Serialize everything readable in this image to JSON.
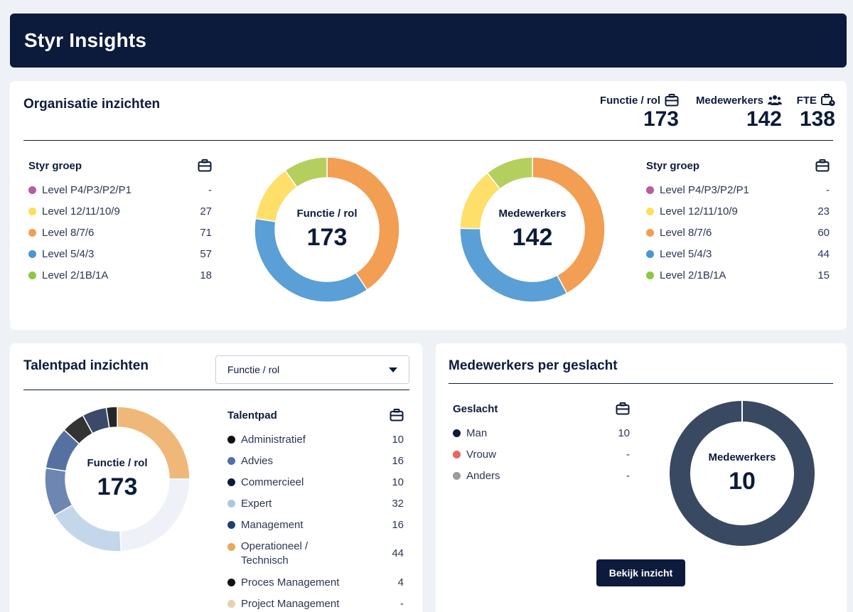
{
  "header": {
    "title": "Styr Insights"
  },
  "org": {
    "title": "Organisatie inzichten",
    "kpis": [
      {
        "label": "Functie / rol",
        "value": "173",
        "icon": "briefcase-icon"
      },
      {
        "label": "Medewerkers",
        "value": "142",
        "icon": "people-icon"
      },
      {
        "label": "FTE",
        "value": "138",
        "icon": "briefcase-clock-icon"
      }
    ],
    "left_legend": {
      "header": "Styr groep",
      "rows": [
        {
          "label": "Level P4/P3/P2/P1",
          "value": "-",
          "color": "#b65da0"
        },
        {
          "label": "Level 12/11/10/9",
          "value": "27",
          "color": "#fddf5b"
        },
        {
          "label": "Level 8/7/6",
          "value": "71",
          "color": "#f29e53"
        },
        {
          "label": "Level 5/4/3",
          "value": "57",
          "color": "#4b95d3"
        },
        {
          "label": "Level 2/1B/1A",
          "value": "18",
          "color": "#8dc73f"
        }
      ]
    },
    "donut_left": {
      "label": "Functie / rol",
      "value": "173"
    },
    "donut_right": {
      "label": "Medewerkers",
      "value": "142"
    },
    "right_legend": {
      "header": "Styr groep",
      "rows": [
        {
          "label": "Level P4/P3/P2/P1",
          "value": "-",
          "color": "#b65da0"
        },
        {
          "label": "Level 12/11/10/9",
          "value": "23",
          "color": "#fddf5b"
        },
        {
          "label": "Level 8/7/6",
          "value": "60",
          "color": "#f29e53"
        },
        {
          "label": "Level 5/4/3",
          "value": "44",
          "color": "#4b95d3"
        },
        {
          "label": "Level 2/1B/1A",
          "value": "15",
          "color": "#8dc73f"
        }
      ]
    }
  },
  "talent": {
    "title": "Talentpad inzichten",
    "select_value": "Functie / rol",
    "donut": {
      "label": "Functie / rol",
      "value": "173"
    },
    "legend_header": "Talentpad",
    "rows": [
      {
        "label": "Administratief",
        "value": "10",
        "color": "#111111"
      },
      {
        "label": "Advies",
        "value": "16",
        "color": "#4f6fa8"
      },
      {
        "label": "Commercieel",
        "value": "10",
        "color": "#0d1b3a"
      },
      {
        "label": "Expert",
        "value": "32",
        "color": "#aec6e2"
      },
      {
        "label": "Management",
        "value": "16",
        "color": "#22406e"
      },
      {
        "label": "Operationeel / Technisch",
        "value": "44",
        "color": "#eaa85a"
      },
      {
        "label": "Proces Management",
        "value": "4",
        "color": "#111111"
      },
      {
        "label": "Project Management",
        "value": "-",
        "color": "#e8cfb0"
      }
    ]
  },
  "gender": {
    "title": "Medewerkers per geslacht",
    "legend_header": "Geslacht",
    "rows": [
      {
        "label": "Man",
        "value": "10",
        "color": "#0d1b3a"
      },
      {
        "label": "Vrouw",
        "value": "-",
        "color": "#ea6560"
      },
      {
        "label": "Anders",
        "value": "-",
        "color": "#9c9c9c"
      }
    ],
    "donut": {
      "label": "Medewerkers",
      "value": "10"
    },
    "button_label": "Bekijk inzicht"
  }
}
